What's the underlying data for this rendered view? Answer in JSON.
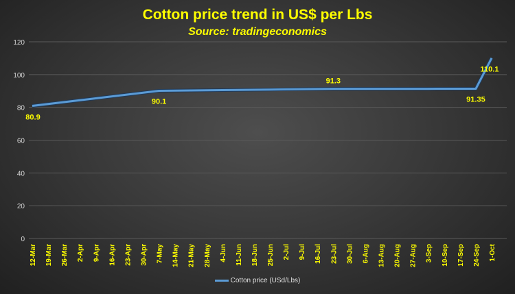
{
  "chart_data": {
    "type": "line",
    "title": "Cotton price trend in US$ per Lbs",
    "subtitle": "Source: tradingeconomics",
    "xlabel": "",
    "ylabel": "",
    "ylim": [
      0,
      120
    ],
    "yticks": [
      0,
      20,
      40,
      60,
      80,
      100,
      120
    ],
    "grid": true,
    "legend": "bottom",
    "categories": [
      "12-Mar",
      "19-Mar",
      "26-Mar",
      "2-Apr",
      "9-Apr",
      "16-Apr",
      "23-Apr",
      "30-Apr",
      "7-May",
      "14-May",
      "21-May",
      "28-May",
      "4-Jun",
      "11-Jun",
      "18-Jun",
      "25-Jun",
      "2-Jul",
      "9-Jul",
      "16-Jul",
      "23-Jul",
      "30-Jul",
      "6-Aug",
      "13-Aug",
      "20-Aug",
      "27-Aug",
      "3-Sep",
      "10-Sep",
      "17-Sep",
      "24-Sep",
      "1-Oct"
    ],
    "series": [
      {
        "name": "Cotton price (USd/Lbs)",
        "color": "#5b9bd5",
        "values": [
          80.9,
          82.05,
          83.2,
          84.35,
          85.5,
          86.65,
          87.8,
          88.95,
          90.1,
          90.21,
          90.32,
          90.43,
          90.54,
          90.65,
          90.75,
          90.86,
          90.97,
          91.08,
          91.19,
          91.3,
          91.31,
          91.31,
          91.32,
          91.32,
          91.33,
          91.33,
          91.34,
          91.34,
          91.35,
          110.1
        ]
      }
    ],
    "data_labels": [
      {
        "index": 0,
        "text": "80.9"
      },
      {
        "index": 8,
        "text": "90.1"
      },
      {
        "index": 19,
        "text": "91.3"
      },
      {
        "index": 28,
        "text": "91.35"
      },
      {
        "index": 29,
        "text": "110.1"
      }
    ],
    "colors": {
      "label": "#ffff00",
      "axis_text": "#d9d9d9",
      "grid": "#5a5a5a"
    }
  }
}
